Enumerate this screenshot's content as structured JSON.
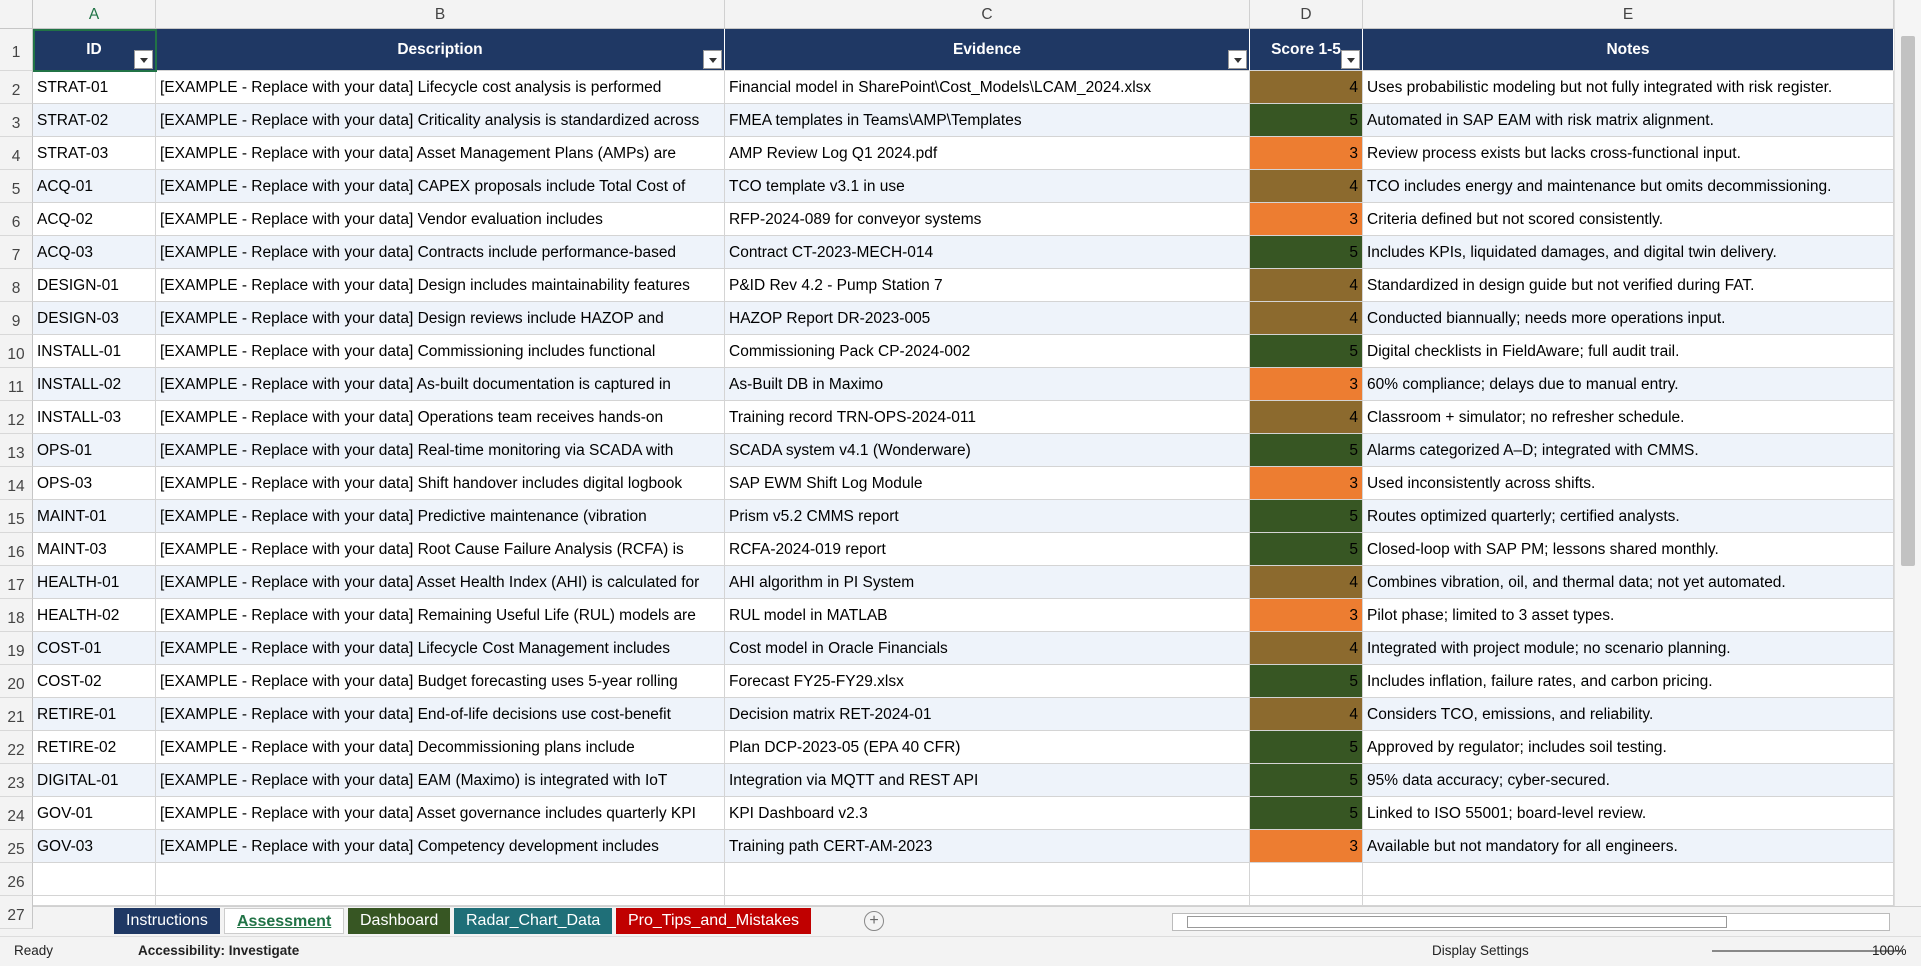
{
  "columns": [
    "A",
    "B",
    "C",
    "D",
    "E"
  ],
  "row_numbers": [
    1,
    2,
    3,
    4,
    5,
    6,
    7,
    8,
    9,
    10,
    11,
    12,
    13,
    14,
    15,
    16,
    17,
    18,
    19,
    20,
    21,
    22,
    23,
    24,
    25,
    26,
    27
  ],
  "table": {
    "headers": [
      "ID",
      "Description",
      "Evidence",
      "Score 1-5",
      "Notes"
    ],
    "rows": [
      [
        "STRAT-01",
        "[EXAMPLE - Replace with your data] Lifecycle cost analysis is performed",
        "Financial model in SharePoint\\Cost_Models\\LCAM_2024.xlsx",
        4,
        "Uses probabilistic modeling but not fully integrated with risk register."
      ],
      [
        "STRAT-02",
        "[EXAMPLE - Replace with your data] Criticality analysis is standardized across",
        "FMEA templates in Teams\\AMP\\Templates",
        5,
        "Automated in SAP EAM with risk matrix alignment."
      ],
      [
        "STRAT-03",
        "[EXAMPLE - Replace with your data] Asset Management Plans (AMPs) are",
        "AMP Review Log Q1 2024.pdf",
        3,
        "Review process exists but lacks cross-functional input."
      ],
      [
        "ACQ-01",
        "[EXAMPLE - Replace with your data] CAPEX proposals include Total Cost of",
        "TCO template v3.1 in use",
        4,
        "TCO includes energy and maintenance but omits decommissioning."
      ],
      [
        "ACQ-02",
        "[EXAMPLE - Replace with your data] Vendor evaluation includes",
        "RFP-2024-089 for conveyor systems",
        3,
        "Criteria defined but not scored consistently."
      ],
      [
        "ACQ-03",
        "[EXAMPLE - Replace with your data] Contracts include performance-based",
        "Contract CT-2023-MECH-014",
        5,
        "Includes KPIs, liquidated damages, and digital twin delivery."
      ],
      [
        "DESIGN-01",
        "[EXAMPLE - Replace with your data] Design includes maintainability features",
        "P&ID Rev 4.2 - Pump Station 7",
        4,
        "Standardized in design guide but not verified during FAT."
      ],
      [
        "DESIGN-03",
        "[EXAMPLE - Replace with your data] Design reviews include HAZOP and",
        "HAZOP Report DR-2023-005",
        4,
        "Conducted biannually; needs more operations input."
      ],
      [
        "INSTALL-01",
        "[EXAMPLE - Replace with your data] Commissioning includes functional",
        "Commissioning Pack CP-2024-002",
        5,
        "Digital checklists in FieldAware; full audit trail."
      ],
      [
        "INSTALL-02",
        "[EXAMPLE - Replace with your data] As-built documentation is captured in",
        "As-Built DB in Maximo",
        3,
        "60% compliance; delays due to manual entry."
      ],
      [
        "INSTALL-03",
        "[EXAMPLE - Replace with your data] Operations team receives hands-on",
        "Training record TRN-OPS-2024-011",
        4,
        "Classroom + simulator; no refresher schedule."
      ],
      [
        "OPS-01",
        "[EXAMPLE - Replace with your data] Real-time monitoring via SCADA with",
        "SCADA system v4.1 (Wonderware)",
        5,
        "Alarms categorized A–D; integrated with CMMS."
      ],
      [
        "OPS-03",
        "[EXAMPLE - Replace with your data] Shift handover includes digital logbook",
        "SAP EWM Shift Log Module",
        3,
        "Used inconsistently across shifts."
      ],
      [
        "MAINT-01",
        "[EXAMPLE - Replace with your data] Predictive maintenance (vibration",
        "Prism v5.2 CMMS report",
        5,
        "Routes optimized quarterly; certified analysts."
      ],
      [
        "MAINT-03",
        "[EXAMPLE - Replace with your data] Root Cause Failure Analysis (RCFA) is",
        "RCFA-2024-019 report",
        5,
        "Closed-loop with SAP PM; lessons shared monthly."
      ],
      [
        "HEALTH-01",
        "[EXAMPLE - Replace with your data] Asset Health Index (AHI) is calculated for",
        "AHI algorithm in PI System",
        4,
        "Combines vibration, oil, and thermal data; not yet automated."
      ],
      [
        "HEALTH-02",
        "[EXAMPLE - Replace with your data] Remaining Useful Life (RUL) models are",
        "RUL model in MATLAB",
        3,
        "Pilot phase; limited to 3 asset types."
      ],
      [
        "COST-01",
        "[EXAMPLE - Replace with your data] Lifecycle Cost Management includes",
        "Cost model in Oracle Financials",
        4,
        "Integrated with project module; no scenario planning."
      ],
      [
        "COST-02",
        "[EXAMPLE - Replace with your data] Budget forecasting uses 5-year rolling",
        "Forecast FY25-FY29.xlsx",
        5,
        "Includes inflation, failure rates, and carbon pricing."
      ],
      [
        "RETIRE-01",
        "[EXAMPLE - Replace with your data] End-of-life decisions use cost-benefit",
        "Decision matrix RET-2024-01",
        4,
        "Considers TCO, emissions, and reliability."
      ],
      [
        "RETIRE-02",
        "[EXAMPLE - Replace with your data] Decommissioning plans include",
        "Plan DCP-2023-05 (EPA 40 CFR)",
        5,
        "Approved by regulator; includes soil testing."
      ],
      [
        "DIGITAL-01",
        "[EXAMPLE - Replace with your data] EAM (Maximo) is integrated with IoT",
        "Integration via MQTT and REST API",
        5,
        "95% data accuracy; cyber-secured."
      ],
      [
        "GOV-01",
        "[EXAMPLE - Replace with your data] Asset governance includes quarterly KPI",
        "KPI Dashboard v2.3",
        5,
        "Linked to ISO 55001; board-level review."
      ],
      [
        "GOV-03",
        "[EXAMPLE - Replace with your data] Competency development includes",
        "Training path CERT-AM-2023",
        3,
        "Available but not mandatory for all engineers."
      ]
    ]
  },
  "sheet_tabs": [
    "Instructions",
    "Assessment",
    "Dashboard",
    "Radar_Chart_Data",
    "Pro_Tips_and_Mistakes"
  ],
  "status": {
    "ready": "Ready",
    "accessibility": "Accessibility: Investigate",
    "display_settings": "Display Settings",
    "zoom": "100%"
  }
}
